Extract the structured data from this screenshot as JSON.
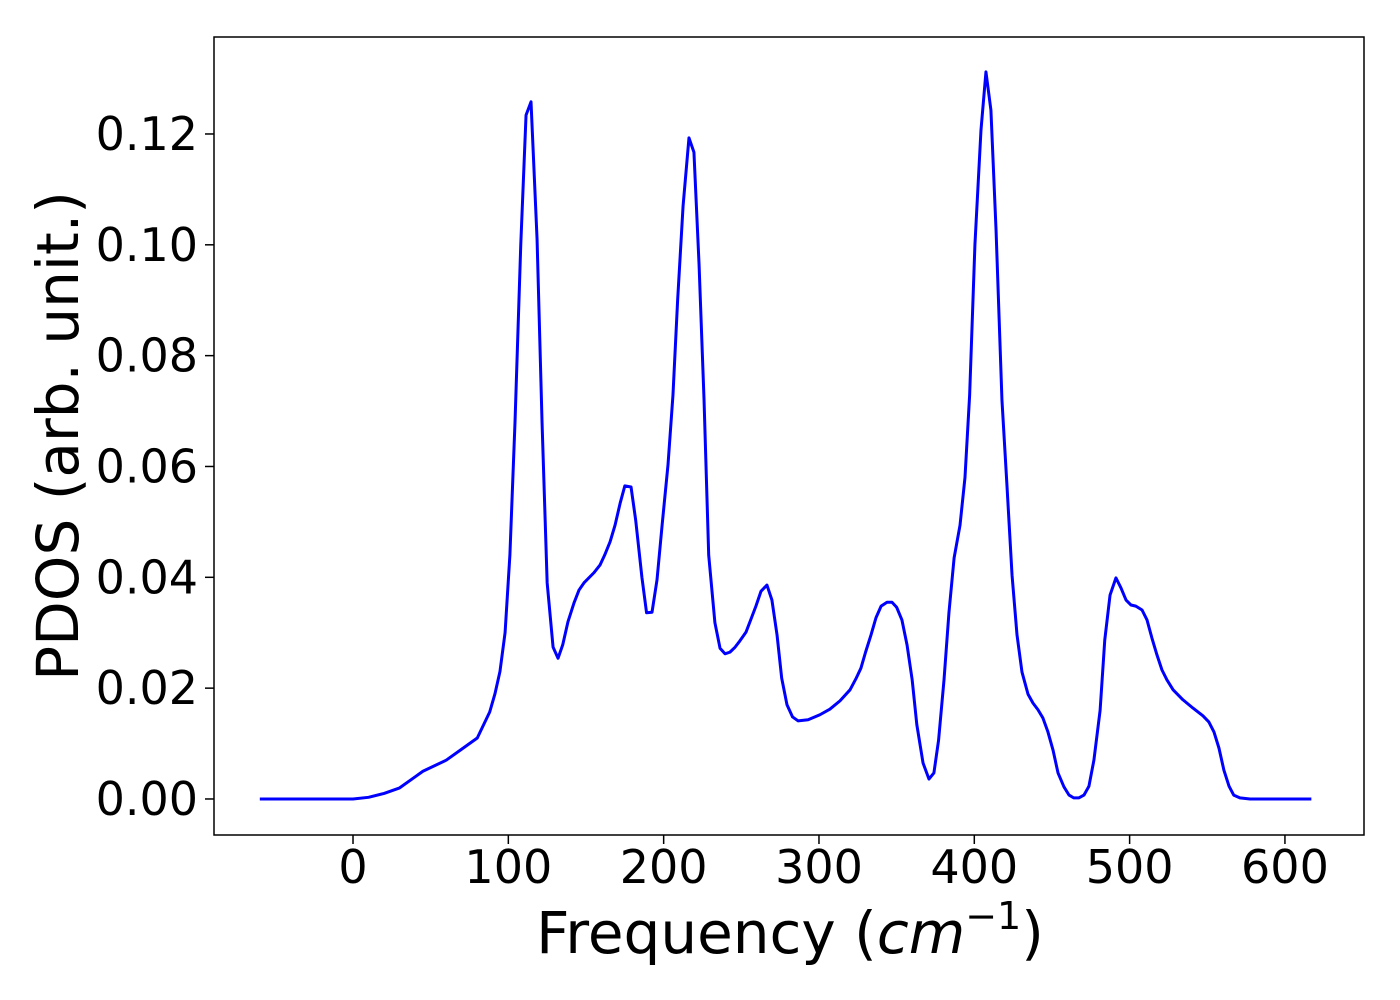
{
  "chart_data": {
    "type": "line",
    "xlabel": [
      "Frequency (",
      "cm",
      "−1",
      ")"
    ],
    "ylabel": "PDOS (arb. unit.)",
    "xlim": [
      -89.5,
      650.9
    ],
    "ylim": [
      -0.0065,
      0.1375
    ],
    "xticks": [
      0,
      100,
      200,
      300,
      400,
      500,
      600
    ],
    "yticks": [
      {
        "value": 0,
        "label": "0.00"
      },
      0.02,
      0.04,
      0.06,
      0.08,
      {
        "value": 0.1,
        "label": "0.10"
      },
      0.12
    ],
    "series": [
      {
        "color": "#0000ff",
        "x": [
          -60,
          0,
          10,
          20,
          30,
          40,
          45,
          60,
          70,
          80,
          88,
          91.4,
          94.6,
          97.9,
          101,
          104.3,
          108,
          111.4,
          114.6,
          118.5,
          121.7,
          125,
          128.8,
          132,
          135,
          138.4,
          142.3,
          145.5,
          148.7,
          155,
          159,
          162,
          165.5,
          168.7,
          172,
          175,
          179,
          182,
          186,
          189,
          192.5,
          195.7,
          199,
          202.8,
          206,
          209,
          212.5,
          216.3,
          219.5,
          222.8,
          226,
          229,
          233,
          236.3,
          239.5,
          242.7,
          246,
          249,
          253,
          256,
          259.4,
          262.7,
          266.5,
          269.7,
          273,
          276,
          279.4,
          283,
          286.5,
          293,
          300.6,
          307,
          313.5,
          320,
          323.8,
          327,
          330,
          333.5,
          336.7,
          340,
          343.8,
          347,
          350,
          353.4,
          356.7,
          360,
          363,
          367,
          370.8,
          374,
          377,
          380.5,
          383.7,
          387,
          390.8,
          394,
          397,
          400.4,
          404.3,
          407.5,
          410.7,
          414,
          417.8,
          421,
          424.3,
          427.5,
          430.7,
          434.6,
          437.8,
          441,
          444.2,
          447.4,
          450.7,
          453.9,
          457.7,
          461,
          464,
          467.4,
          470.6,
          473.8,
          477,
          481,
          484,
          487.4,
          491.2,
          494.4,
          497.7,
          500.9,
          504,
          508,
          511.2,
          514.4,
          517.6,
          520.8,
          524,
          528,
          534.3,
          540.8,
          547.2,
          551,
          554.3,
          557.5,
          560.7,
          564,
          567,
          571,
          577.5,
          617
        ],
        "values": [
          0,
          0,
          0.0003,
          0.001,
          0.002,
          0.004,
          0.005,
          0.007,
          0.009,
          0.011,
          0.0157,
          0.019,
          0.023,
          0.03,
          0.044,
          0.068,
          0.1,
          0.1234,
          0.1258,
          0.101,
          0.068,
          0.039,
          0.0274,
          0.0254,
          0.0278,
          0.032,
          0.0354,
          0.0377,
          0.039,
          0.0408,
          0.0422,
          0.044,
          0.0464,
          0.0494,
          0.0534,
          0.0565,
          0.0563,
          0.0503,
          0.04,
          0.0336,
          0.0337,
          0.0395,
          0.0494,
          0.0603,
          0.0729,
          0.09,
          0.107,
          0.1193,
          0.1167,
          0.0964,
          0.072,
          0.044,
          0.0318,
          0.0272,
          0.0262,
          0.0265,
          0.0274,
          0.0285,
          0.0301,
          0.0323,
          0.0348,
          0.0375,
          0.0386,
          0.0359,
          0.0296,
          0.0218,
          0.017,
          0.0148,
          0.0141,
          0.0143,
          0.0152,
          0.0162,
          0.0177,
          0.0197,
          0.0217,
          0.0236,
          0.0265,
          0.0296,
          0.0327,
          0.0348,
          0.0355,
          0.0355,
          0.0346,
          0.0323,
          0.0278,
          0.0215,
          0.0134,
          0.0065,
          0.0036,
          0.0047,
          0.0106,
          0.0215,
          0.0337,
          0.0435,
          0.0494,
          0.058,
          0.0729,
          0.1,
          0.1207,
          0.1312,
          0.1243,
          0.1027,
          0.072,
          0.0567,
          0.0404,
          0.0296,
          0.0229,
          0.0189,
          0.0173,
          0.0161,
          0.0146,
          0.0121,
          0.0088,
          0.0047,
          0.0022,
          0.0007,
          0.0002,
          0.0002,
          0.0007,
          0.0023,
          0.007,
          0.016,
          0.0287,
          0.0368,
          0.0399,
          0.0381,
          0.0359,
          0.035,
          0.0348,
          0.0341,
          0.0323,
          0.029,
          0.026,
          0.0233,
          0.0215,
          0.0197,
          0.0179,
          0.0164,
          0.015,
          0.0139,
          0.0121,
          0.0092,
          0.0052,
          0.0023,
          0.0007,
          0.0002,
          0,
          0
        ]
      }
    ]
  }
}
